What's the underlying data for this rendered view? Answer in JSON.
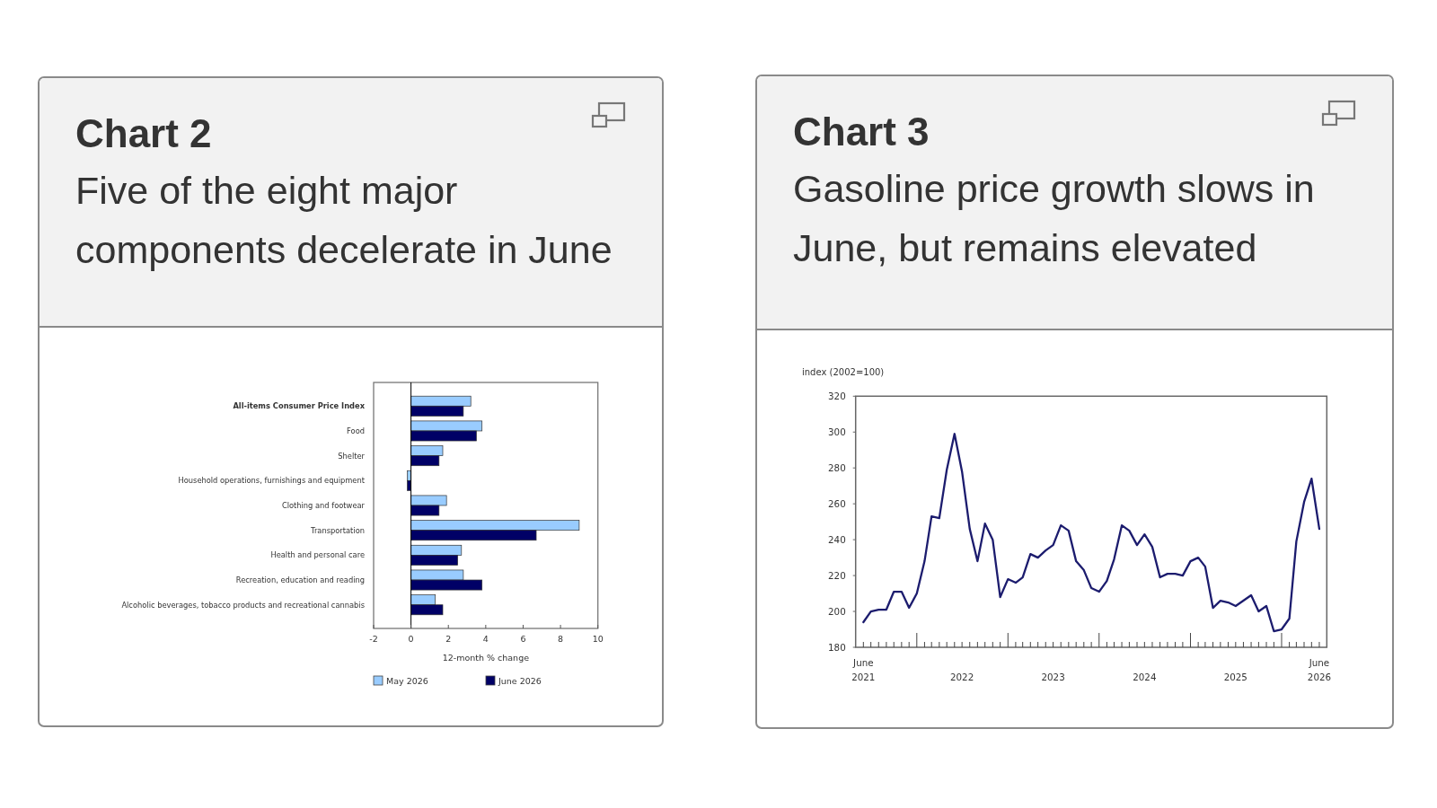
{
  "chart_data": [
    {
      "type": "bar",
      "orientation": "horizontal",
      "title": "Chart 2",
      "subtitle": "Five of the eight major components decelerate in June",
      "categories": [
        "All-items Consumer Price Index",
        "Food",
        "Shelter",
        "Household operations, furnishings and equipment",
        "Clothing and footwear",
        "Transportation",
        "Health and personal care",
        "Recreation, education and reading",
        "Alcoholic beverages, tobacco products and recreational cannabis"
      ],
      "series": [
        {
          "name": "May 2026",
          "color": "#99ccff",
          "values": [
            3.2,
            3.8,
            1.7,
            -0.2,
            1.9,
            9.0,
            2.7,
            2.8,
            1.3
          ]
        },
        {
          "name": "June 2026",
          "color": "#000066",
          "values": [
            2.8,
            3.5,
            1.5,
            -0.2,
            1.5,
            6.7,
            2.5,
            3.8,
            1.7
          ]
        }
      ],
      "xlim": [
        -2,
        10
      ],
      "xticks": [
        -2,
        0,
        2,
        4,
        6,
        8,
        10
      ],
      "xlabel": "12-month % change",
      "legend": "bottom"
    },
    {
      "type": "line",
      "title": "Chart 3",
      "subtitle": "Gasoline price growth slows in June, but remains elevated",
      "ylabel": "index (2002=100)",
      "x": [
        "2021-06",
        "2021-07",
        "2021-08",
        "2021-09",
        "2021-10",
        "2021-11",
        "2021-12",
        "2022-01",
        "2022-02",
        "2022-03",
        "2022-04",
        "2022-05",
        "2022-06",
        "2022-07",
        "2022-08",
        "2022-09",
        "2022-10",
        "2022-11",
        "2022-12",
        "2023-01",
        "2023-02",
        "2023-03",
        "2023-04",
        "2023-05",
        "2023-06",
        "2023-07",
        "2023-08",
        "2023-09",
        "2023-10",
        "2023-11",
        "2023-12",
        "2024-01",
        "2024-02",
        "2024-03",
        "2024-04",
        "2024-05",
        "2024-06",
        "2024-07",
        "2024-08",
        "2024-09",
        "2024-10",
        "2024-11",
        "2024-12",
        "2025-01",
        "2025-02",
        "2025-03",
        "2025-04",
        "2025-05",
        "2025-06",
        "2025-07",
        "2025-08",
        "2025-09",
        "2025-10",
        "2025-11",
        "2025-12",
        "2026-01",
        "2026-02",
        "2026-03",
        "2026-04",
        "2026-05",
        "2026-06"
      ],
      "series": [
        {
          "color": "#1c1c6e",
          "values": [
            194,
            200,
            201,
            201,
            211,
            211,
            202,
            210,
            228,
            253,
            252,
            279,
            299,
            278,
            246,
            228,
            249,
            240,
            208,
            218,
            216,
            219,
            232,
            230,
            234,
            237,
            248,
            245,
            228,
            223,
            213,
            211,
            217,
            229,
            248,
            245,
            237,
            243,
            236,
            219,
            221,
            221,
            220,
            228,
            230,
            225,
            202,
            206,
            205,
            203,
            206,
            209,
            200,
            203,
            189,
            190,
            196,
            239,
            261,
            274,
            246
          ]
        }
      ],
      "xlim": [
        "2021-05",
        "2026-07"
      ],
      "xticks": [
        {
          "value": "2021-06",
          "label": "June 2021"
        },
        {
          "value": "2021-07",
          "label": null
        },
        {
          "value": "2021-08",
          "label": null
        },
        {
          "value": "2021-09",
          "label": null
        },
        {
          "value": "2021-10",
          "label": null
        },
        {
          "value": "2021-11",
          "label": null
        },
        {
          "value": "2021-12",
          "label": null
        },
        {
          "value": "2022-01",
          "label": null
        },
        {
          "value": "2022-02",
          "label": null
        },
        {
          "value": "2022-03",
          "label": null
        },
        {
          "value": "2022-04",
          "label": null
        },
        {
          "value": "2022-05",
          "label": null
        },
        {
          "value": "2022-06",
          "label": null
        },
        {
          "value": "2022-07",
          "label": "2022"
        },
        {
          "value": "2022-08",
          "label": null
        },
        {
          "value": "2022-09",
          "label": null
        },
        {
          "value": "2022-10",
          "label": null
        },
        {
          "value": "2022-11",
          "label": null
        },
        {
          "value": "2022-12",
          "label": null
        },
        {
          "value": "2023-01",
          "label": null
        },
        {
          "value": "2023-02",
          "label": null
        },
        {
          "value": "2023-03",
          "label": null
        },
        {
          "value": "2023-04",
          "label": null
        },
        {
          "value": "2023-05",
          "label": null
        },
        {
          "value": "2023-06",
          "label": null
        },
        {
          "value": "2023-07",
          "label": "2023"
        },
        {
          "value": "2023-08",
          "label": null
        },
        {
          "value": "2023-09",
          "label": null
        },
        {
          "value": "2023-10",
          "label": null
        },
        {
          "value": "2023-11",
          "label": null
        },
        {
          "value": "2023-12",
          "label": null
        },
        {
          "value": "2024-01",
          "label": null
        },
        {
          "value": "2024-02",
          "label": null
        },
        {
          "value": "2024-03",
          "label": null
        },
        {
          "value": "2024-04",
          "label": null
        },
        {
          "value": "2024-05",
          "label": null
        },
        {
          "value": "2024-06",
          "label": null
        },
        {
          "value": "2024-07",
          "label": "2024"
        },
        {
          "value": "2024-08",
          "label": null
        },
        {
          "value": "2024-09",
          "label": null
        },
        {
          "value": "2024-10",
          "label": null
        },
        {
          "value": "2024-11",
          "label": null
        },
        {
          "value": "2024-12",
          "label": null
        },
        {
          "value": "2025-01",
          "label": null
        },
        {
          "value": "2025-02",
          "label": null
        },
        {
          "value": "2025-03",
          "label": null
        },
        {
          "value": "2025-04",
          "label": null
        },
        {
          "value": "2025-05",
          "label": null
        },
        {
          "value": "2025-06",
          "label": null
        },
        {
          "value": "2025-07",
          "label": "2025"
        },
        {
          "value": "2025-08",
          "label": null
        },
        {
          "value": "2025-09",
          "label": null
        },
        {
          "value": "2025-10",
          "label": null
        },
        {
          "value": "2025-11",
          "label": null
        },
        {
          "value": "2025-12",
          "label": null
        },
        {
          "value": "2026-01",
          "label": null
        },
        {
          "value": "2026-02",
          "label": null
        },
        {
          "value": "2026-03",
          "label": null
        },
        {
          "value": "2026-04",
          "label": null
        },
        {
          "value": "2026-05",
          "label": null
        },
        {
          "value": "2026-06",
          "label": "June 2026"
        }
      ],
      "ylim": [
        180,
        320
      ],
      "yticks": [
        180,
        200,
        220,
        240,
        260,
        280,
        300,
        320
      ]
    }
  ]
}
